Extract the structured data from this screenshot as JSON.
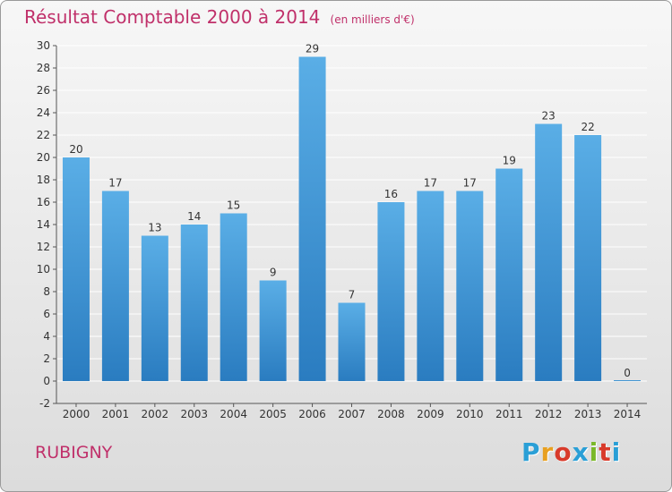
{
  "header": {
    "title": "Résultat Comptable 2000 à 2014",
    "subtitle": "(en milliers d'€)"
  },
  "footer": {
    "place": "RUBIGNY",
    "logo_text": "Proxiti"
  },
  "colors": {
    "title": "#c0306a",
    "bar_top": "#5aaee6",
    "bar_bottom": "#2a7cc0",
    "grid": "#ffffff",
    "logo_letters": [
      "#2a9fd6",
      "#e8a020",
      "#d83a2a",
      "#2a9fd6",
      "#7ab828",
      "#d83a2a",
      "#2a9fd6"
    ]
  },
  "chart_data": {
    "type": "bar",
    "categories": [
      "2000",
      "2001",
      "2002",
      "2003",
      "2004",
      "2005",
      "2006",
      "2007",
      "2008",
      "2009",
      "2010",
      "2011",
      "2012",
      "2013",
      "2014"
    ],
    "values": [
      20,
      17,
      13,
      14,
      15,
      9,
      29,
      7,
      16,
      17,
      17,
      19,
      23,
      22,
      0
    ],
    "data_labels": [
      "20",
      "17",
      "13",
      "14",
      "15",
      "9",
      "29",
      "7",
      "16",
      "17",
      "17",
      "19",
      "23",
      "22",
      "0"
    ],
    "y_ticks": [
      -2,
      0,
      2,
      4,
      6,
      8,
      10,
      12,
      14,
      16,
      18,
      20,
      22,
      24,
      26,
      28,
      30
    ],
    "y_tick_labels": [
      "-2",
      "0",
      "2",
      "4",
      "6",
      "8",
      "10",
      "12",
      "14",
      "16",
      "18",
      "20",
      "22",
      "24",
      "26",
      "28",
      "30"
    ],
    "ylim": [
      -2,
      30
    ],
    "grid": true,
    "title": "Résultat Comptable 2000 à 2014",
    "xlabel": "",
    "ylabel": ""
  }
}
